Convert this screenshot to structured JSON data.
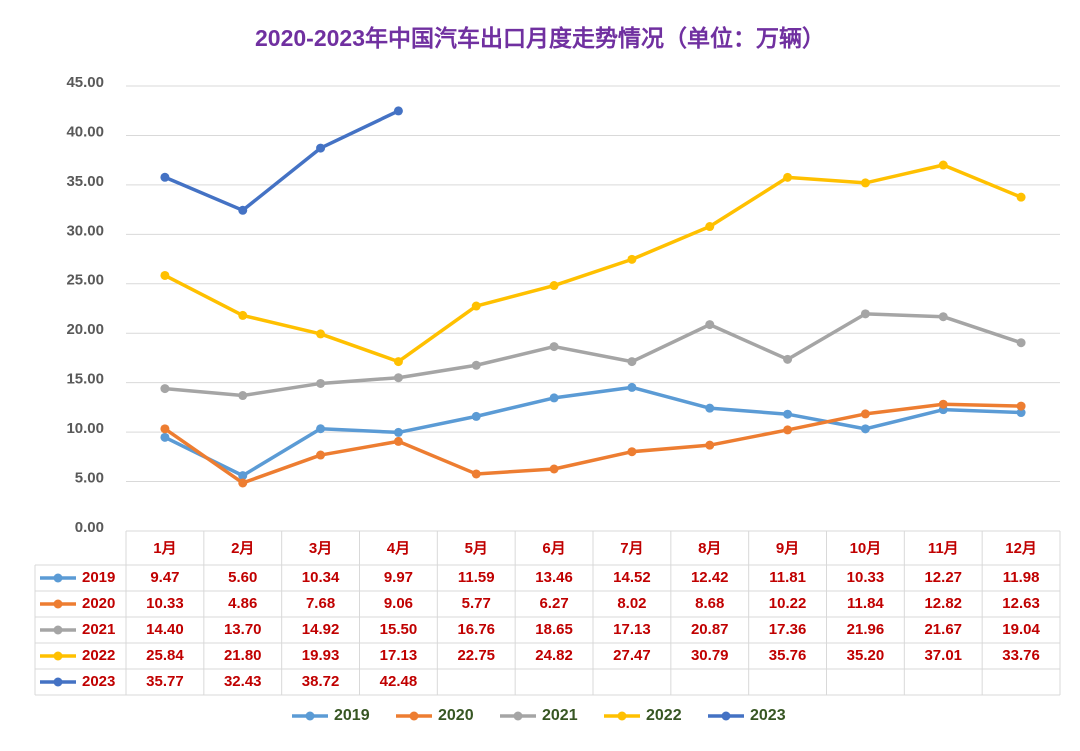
{
  "chart_data": {
    "type": "line",
    "title": "2020-2023年中国汽车出口月度走势情况（单位：万辆）",
    "categories": [
      "1月",
      "2月",
      "3月",
      "4月",
      "5月",
      "6月",
      "7月",
      "8月",
      "9月",
      "10月",
      "11月",
      "12月"
    ],
    "ylim": [
      0,
      45
    ],
    "yticks": [
      {
        "value": 0,
        "label": "0.00"
      },
      {
        "value": 5,
        "label": "5.00"
      },
      {
        "value": 10,
        "label": "10.00"
      },
      {
        "value": 15,
        "label": "15.00"
      },
      {
        "value": 20,
        "label": "20.00"
      },
      {
        "value": 25,
        "label": "25.00"
      },
      {
        "value": 30,
        "label": "30.00"
      },
      {
        "value": 35,
        "label": "35.00"
      },
      {
        "value": 40,
        "label": "40.00"
      },
      {
        "value": 45,
        "label": "45.00"
      }
    ],
    "grid": true,
    "series": [
      {
        "name": "2019",
        "color": "#5b9bd5",
        "values": [
          9.47,
          5.6,
          10.34,
          9.97,
          11.59,
          13.46,
          14.52,
          12.42,
          11.81,
          10.33,
          12.27,
          11.98
        ],
        "value_labels": [
          "9.47",
          "5.60",
          "10.34",
          "9.97",
          "11.59",
          "13.46",
          "14.52",
          "12.42",
          "11.81",
          "10.33",
          "12.27",
          "11.98"
        ]
      },
      {
        "name": "2020",
        "color": "#ed7d31",
        "values": [
          10.33,
          4.86,
          7.68,
          9.06,
          5.77,
          6.27,
          8.02,
          8.68,
          10.22,
          11.84,
          12.82,
          12.63
        ],
        "value_labels": [
          "10.33",
          "4.86",
          "7.68",
          "9.06",
          "5.77",
          "6.27",
          "8.02",
          "8.68",
          "10.22",
          "11.84",
          "12.82",
          "12.63"
        ]
      },
      {
        "name": "2021",
        "color": "#a5a5a5",
        "values": [
          14.4,
          13.7,
          14.92,
          15.5,
          16.76,
          18.65,
          17.13,
          20.87,
          17.36,
          21.96,
          21.67,
          19.04
        ],
        "value_labels": [
          "14.40",
          "13.70",
          "14.92",
          "15.50",
          "16.76",
          "18.65",
          "17.13",
          "20.87",
          "17.36",
          "21.96",
          "21.67",
          "19.04"
        ]
      },
      {
        "name": "2022",
        "color": "#ffc000",
        "values": [
          25.84,
          21.8,
          19.93,
          17.13,
          22.75,
          24.82,
          27.47,
          30.79,
          35.76,
          35.2,
          37.01,
          33.76
        ],
        "value_labels": [
          "25.84",
          "21.80",
          "19.93",
          "17.13",
          "22.75",
          "24.82",
          "27.47",
          "30.79",
          "35.76",
          "35.20",
          "37.01",
          "33.76"
        ]
      },
      {
        "name": "2023",
        "color": "#4472c4",
        "values": [
          35.77,
          32.43,
          38.72,
          42.48,
          null,
          null,
          null,
          null,
          null,
          null,
          null,
          null
        ],
        "value_labels": [
          "35.77",
          "32.43",
          "38.72",
          "42.48",
          null,
          null,
          null,
          null,
          null,
          null,
          null,
          null
        ]
      }
    ]
  }
}
